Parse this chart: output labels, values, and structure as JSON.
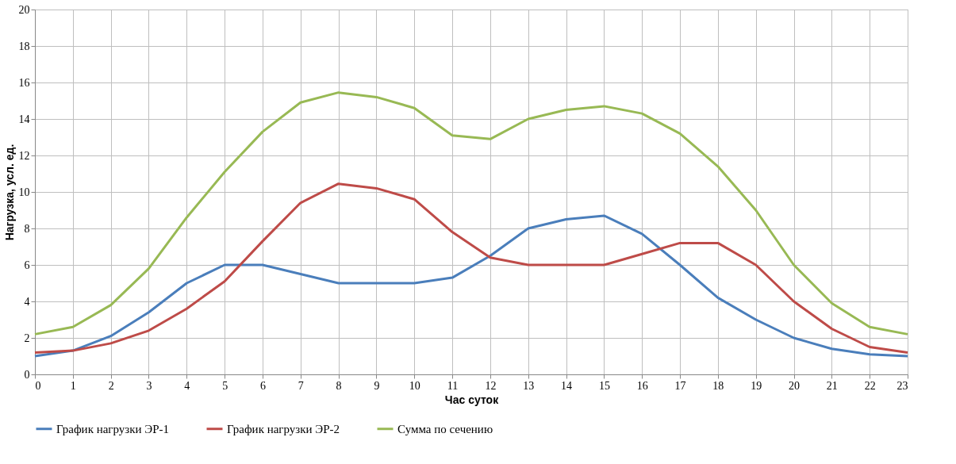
{
  "chart_data": {
    "type": "line",
    "xlabel": "Час суток",
    "ylabel": "Нагрузка, усл. ед.",
    "x": [
      0,
      1,
      2,
      3,
      4,
      5,
      6,
      7,
      8,
      9,
      10,
      11,
      12,
      13,
      14,
      15,
      16,
      17,
      18,
      19,
      20,
      21,
      22,
      23
    ],
    "xlim": [
      0,
      23
    ],
    "xticks": [
      0,
      1,
      2,
      3,
      4,
      5,
      6,
      7,
      8,
      9,
      10,
      11,
      12,
      13,
      14,
      15,
      16,
      17,
      18,
      19,
      20,
      21,
      22,
      23
    ],
    "ylim": [
      0,
      20
    ],
    "yticks": [
      0,
      2,
      4,
      6,
      8,
      10,
      12,
      14,
      16,
      18,
      20
    ],
    "grid": true,
    "legend": "bottom",
    "marker": "none",
    "line_style": "solid",
    "series": [
      {
        "name": "График нагрузки ЭР-1",
        "color": "#4a7ebb",
        "values": [
          1.0,
          1.3,
          2.1,
          3.4,
          5.0,
          6.0,
          6.0,
          5.5,
          5.0,
          5.0,
          5.0,
          5.3,
          6.5,
          8.0,
          8.5,
          8.7,
          7.7,
          6.0,
          4.2,
          3.0,
          2.0,
          1.4,
          1.1,
          1.0
        ]
      },
      {
        "name": "График нагрузки ЭР-2",
        "color": "#be4b48",
        "values": [
          1.2,
          1.3,
          1.7,
          2.4,
          3.6,
          5.1,
          7.3,
          9.4,
          10.45,
          10.2,
          9.6,
          7.8,
          6.4,
          6.0,
          6.0,
          6.0,
          6.6,
          7.2,
          7.2,
          6.0,
          4.0,
          2.5,
          1.5,
          1.2
        ]
      },
      {
        "name": "Сумма по сечению",
        "color": "#98b954",
        "values": [
          2.2,
          2.6,
          3.8,
          5.8,
          8.6,
          11.1,
          13.3,
          14.9,
          15.45,
          15.2,
          14.6,
          13.1,
          12.9,
          14.0,
          14.5,
          14.7,
          14.3,
          13.2,
          11.4,
          9.0,
          6.0,
          3.9,
          2.6,
          2.2
        ]
      }
    ]
  }
}
